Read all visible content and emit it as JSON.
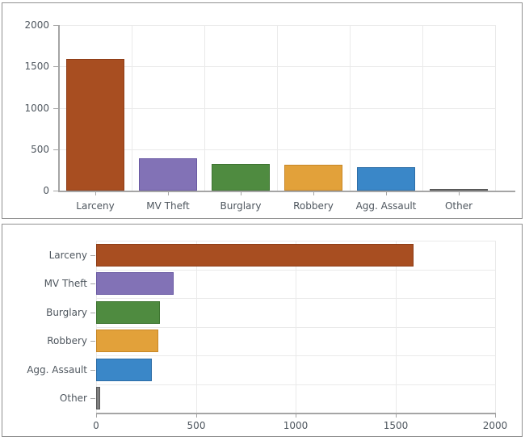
{
  "style": {
    "grid_color": "#eaeaea",
    "axis_color": "#a5a5a5",
    "label_color": "#4e565e",
    "panel_border": "#909090",
    "background": "#ffffff"
  },
  "chart_data": [
    {
      "type": "bar",
      "orientation": "vertical",
      "title": "",
      "xlabel": "",
      "ylabel": "",
      "categories": [
        "Larceny",
        "MV Theft",
        "Burglary",
        "Robbery",
        "Agg. Assault",
        "Other"
      ],
      "values": [
        1590,
        390,
        320,
        310,
        280,
        20
      ],
      "ylim": [
        0,
        2000
      ],
      "yticks": [
        0,
        500,
        1000,
        1500,
        2000
      ],
      "ytick_labels": [
        "0",
        "500",
        "1000",
        "1500",
        "2000"
      ],
      "grid": true,
      "legend": false,
      "bar_colors": [
        "#a84e21",
        "#8272b6",
        "#4f8b40",
        "#e2a13a",
        "#3a87c8",
        "#808080"
      ],
      "bar_border_colors": [
        "#8e3d17",
        "#6a5aa3",
        "#3e7431",
        "#c78727",
        "#2d6da6",
        "#595959"
      ]
    },
    {
      "type": "bar",
      "orientation": "horizontal",
      "title": "",
      "xlabel": "",
      "ylabel": "",
      "categories": [
        "Larceny",
        "MV Theft",
        "Burglary",
        "Robbery",
        "Agg. Assault",
        "Other"
      ],
      "values": [
        1590,
        390,
        320,
        310,
        280,
        20
      ],
      "xlim": [
        0,
        2000
      ],
      "xticks": [
        0,
        500,
        1000,
        1500,
        2000
      ],
      "xtick_labels": [
        "0",
        "500",
        "1000",
        "1500",
        "2000"
      ],
      "grid": true,
      "legend": false,
      "bar_colors": [
        "#a84e21",
        "#8272b6",
        "#4f8b40",
        "#e2a13a",
        "#3a87c8",
        "#808080"
      ],
      "bar_border_colors": [
        "#8e3d17",
        "#6a5aa3",
        "#3e7431",
        "#c78727",
        "#2d6da6",
        "#595959"
      ]
    }
  ]
}
